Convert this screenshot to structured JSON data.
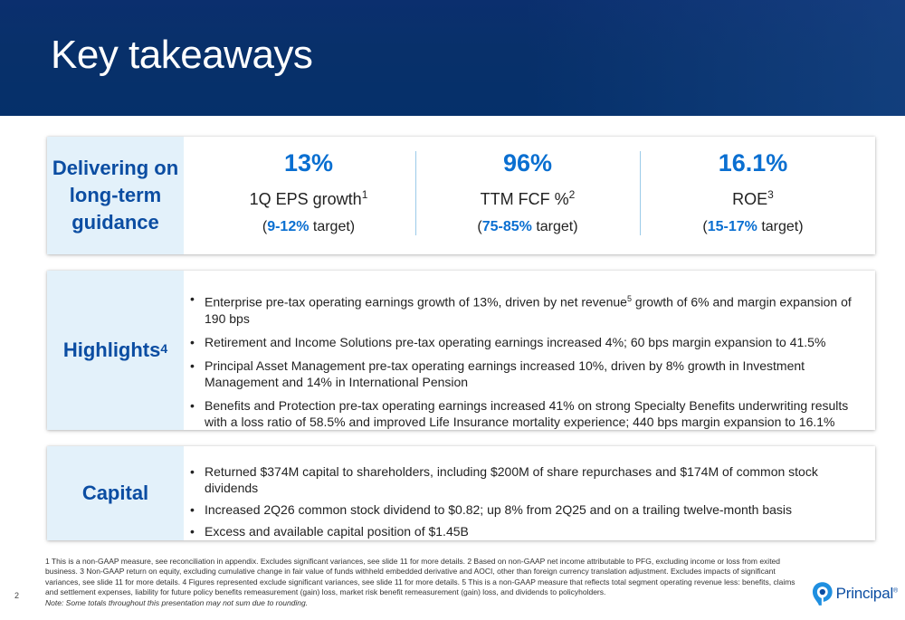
{
  "title": "Key takeaways",
  "guidance": {
    "label": "Delivering on long-term guidance",
    "metrics": [
      {
        "value": "13%",
        "label": "1Q EPS growth",
        "sup": "1",
        "target_open": "(",
        "target_range": "9-12%",
        "target_rest": " target)"
      },
      {
        "value": "96%",
        "label": "TTM FCF %",
        "sup": "2",
        "target_open": "(",
        "target_range": "75-85%",
        "target_rest": " target)"
      },
      {
        "value": "16.1%",
        "label": "ROE",
        "sup": "3",
        "target_open": "(",
        "target_range": "15-17%",
        "target_rest": " target)"
      }
    ]
  },
  "highlights": {
    "label": "Highlights",
    "label_sup": "4",
    "items": [
      {
        "pre": "Enterprise pre-tax operating earnings growth of 13%, driven by net revenue",
        "sup": "5",
        "post": " growth of 6% and margin expansion of 190 bps"
      },
      {
        "text": "Retirement and Income Solutions pre-tax operating earnings increased 4%; 60 bps margin expansion to 41.5%"
      },
      {
        "text": "Principal Asset Management pre-tax operating earnings increased 10%, driven by 8% growth in Investment Management and 14% in International Pension"
      },
      {
        "text": "Benefits and Protection pre-tax operating earnings increased 41% on strong Specialty Benefits underwriting results with a loss ratio of 58.5% and improved Life Insurance mortality experience; 440 bps margin expansion to 16.1%"
      }
    ]
  },
  "capital": {
    "label": "Capital",
    "items": [
      "Returned $374M capital to shareholders, including $200M of share repurchases and $174M of common stock dividends",
      "Increased 2Q26 common stock dividend to $0.82; up 8% from 2Q25 and on a trailing twelve-month basis",
      "Excess and available capital position of $1.45B"
    ]
  },
  "footnotes": {
    "text": "1 This is a non-GAAP measure, see reconciliation in appendix. Excludes significant variances, see slide 11 for more details. 2 Based on non-GAAP net income attributable to PFG, excluding income or loss from exited business. 3 Non-GAAP return on equity, excluding cumulative change in fair value of funds withheld embedded derivative and AOCI, other than foreign currency translation adjustment. Excludes impacts of significant variances, see slide 11 for more details. 4 Figures represented exclude significant variances, see slide 11 for more details. 5 This is a non-GAAP measure that reflects total segment operating revenue less: benefits, claims and settlement expenses, liability for future policy benefits remeasurement (gain) loss, market risk benefit remeasurement (gain) loss, and dividends to policyholders.",
    "note": "Note: Some totals throughout this presentation may not sum due to rounding."
  },
  "page_number": "2",
  "brand": {
    "name": "Principal",
    "mark": "®"
  },
  "colors": {
    "header_navy": "#08306a",
    "accent_blue": "#0a6fd1",
    "label_blue": "#0b4da2",
    "panel_bg": "#e3f1fa"
  }
}
